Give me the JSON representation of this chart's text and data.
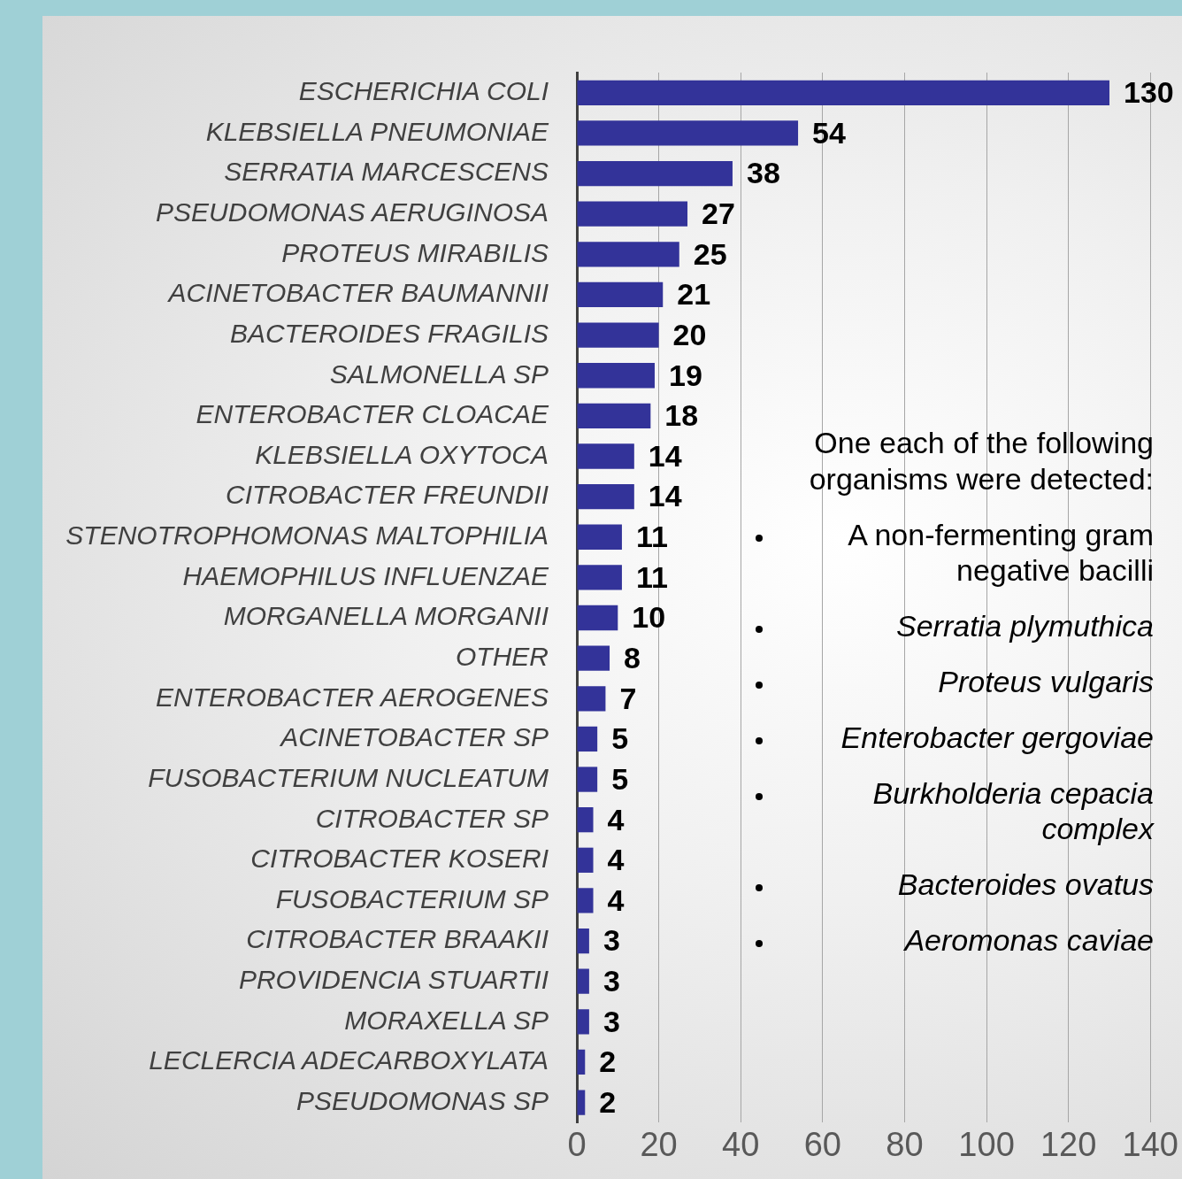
{
  "chart_data": {
    "type": "bar",
    "orientation": "horizontal",
    "categories": [
      "ESCHERICHIA COLI",
      "KLEBSIELLA PNEUMONIAE",
      "SERRATIA MARCESCENS",
      "PSEUDOMONAS AERUGINOSA",
      "PROTEUS MIRABILIS",
      "ACINETOBACTER BAUMANNII",
      "BACTEROIDES FRAGILIS",
      "SALMONELLA SP",
      "ENTEROBACTER CLOACAE",
      "KLEBSIELLA OXYTOCA",
      "CITROBACTER FREUNDII",
      "STENOTROPHOMONAS MALTOPHILIA",
      "HAEMOPHILUS INFLUENZAE",
      "MORGANELLA MORGANII",
      "OTHER",
      "ENTEROBACTER AEROGENES",
      "ACINETOBACTER SP",
      "FUSOBACTERIUM NUCLEATUM",
      "CITROBACTER SP",
      "CITROBACTER KOSERI",
      "FUSOBACTERIUM SP",
      "CITROBACTER BRAAKII",
      "PROVIDENCIA STUARTII",
      "MORAXELLA SP",
      "LECLERCIA ADECARBOXYLATA",
      "PSEUDOMONAS SP"
    ],
    "values": [
      130,
      54,
      38,
      27,
      25,
      21,
      20,
      19,
      18,
      14,
      14,
      11,
      11,
      10,
      8,
      7,
      5,
      5,
      4,
      4,
      4,
      3,
      3,
      3,
      2,
      2
    ],
    "color": "#333399",
    "xlim": [
      0,
      140
    ],
    "xticks": [
      0,
      20,
      40,
      60,
      80,
      100,
      120,
      140
    ],
    "grid": "x",
    "legend": false,
    "data_labels": true,
    "annotations": [
      "One each of the following organisms were detected:",
      "A non-fermenting gram negative bacilli",
      "Serratia plymuthica",
      "Proteus vulgaris",
      "Enterobacter gergoviae",
      "Burkholderia cepacia complex",
      "Bacteroides ovatus",
      "Aeromonas caviae"
    ]
  }
}
